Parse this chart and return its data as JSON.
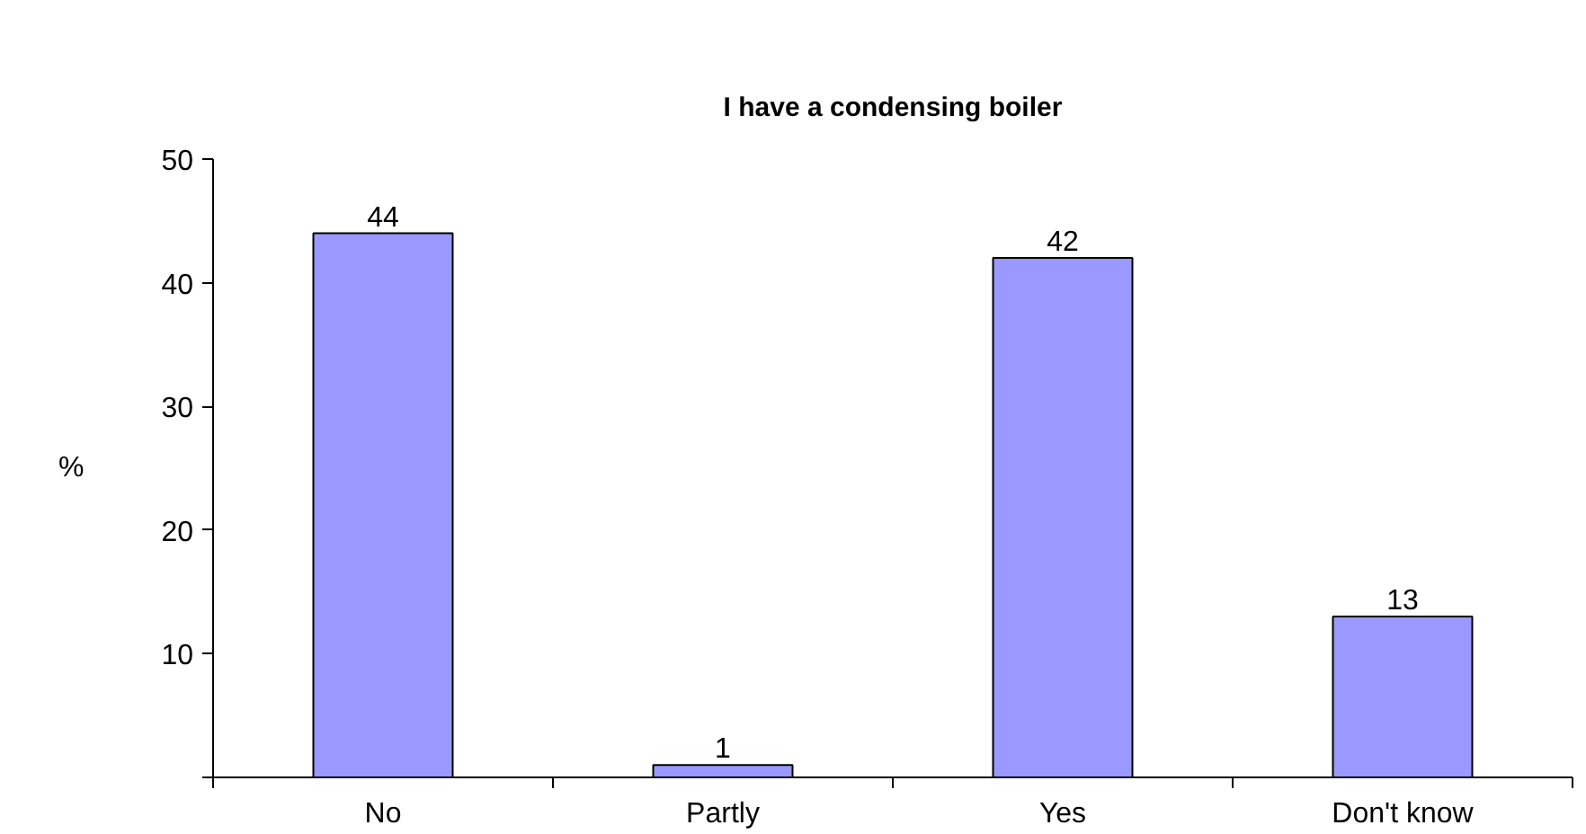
{
  "chart_data": {
    "type": "bar",
    "title": "I have a condensing boiler",
    "ylabel": "%",
    "categories": [
      "No",
      "Partly",
      "Yes",
      "Don't know"
    ],
    "values": [
      44,
      1,
      42,
      13
    ],
    "color": "#9999ff",
    "ylim": [
      0,
      50
    ],
    "yticks": [
      {
        "value": 0,
        "label": null
      },
      10,
      20,
      30,
      40,
      50
    ],
    "data_labels": true
  }
}
